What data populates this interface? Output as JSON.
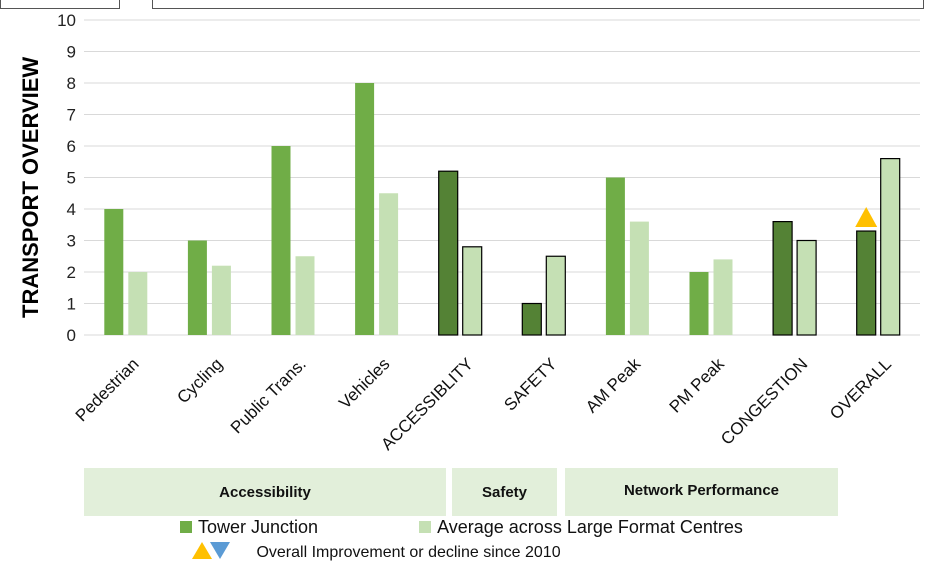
{
  "chart_data": {
    "type": "bar",
    "ylabel": "TRANSPORT OVERVIEW",
    "ylim": [
      0,
      10
    ],
    "yticks": [
      0,
      1,
      2,
      3,
      4,
      5,
      6,
      7,
      8,
      9,
      10
    ],
    "categories": [
      "Pedestrian",
      "Cycling",
      "Public Trans.",
      "Vehicles",
      "ACCESSIBLITY",
      "SAFETY",
      "AM Peak",
      "PM Peak",
      "CONGESTION",
      "OVERALL"
    ],
    "outlined_categories": [
      "ACCESSIBLITY",
      "SAFETY",
      "CONGESTION",
      "OVERALL"
    ],
    "series": [
      {
        "name": "Tower Junction",
        "color": "#70ad47",
        "outlined_color": "#548235",
        "values": [
          4.0,
          3.0,
          6.0,
          8.0,
          5.2,
          1.0,
          5.0,
          2.0,
          3.6,
          3.3
        ]
      },
      {
        "name": "Average across Large Format Centres",
        "color": "#c5e0b4",
        "outlined_color": "#c5e0b4",
        "values": [
          2.0,
          2.2,
          2.5,
          4.5,
          2.8,
          2.5,
          3.6,
          2.4,
          3.0,
          5.6
        ]
      }
    ],
    "annotations": [
      {
        "category": "OVERALL",
        "marker": "triangle-up",
        "color": "#ffc000",
        "meaning": "improvement since 2010"
      }
    ],
    "grid": true,
    "legend_position": "bottom"
  },
  "groups": [
    {
      "label": "Accessibility"
    },
    {
      "label": "Safety"
    },
    {
      "label": "Network Performance"
    }
  ],
  "legend": {
    "series1": "Tower Junction",
    "series2": "Average across Large Format Centres",
    "marker_note": "Overall Improvement or decline since 2010",
    "up_color": "#ffc000",
    "down_color": "#5b9bd5"
  }
}
